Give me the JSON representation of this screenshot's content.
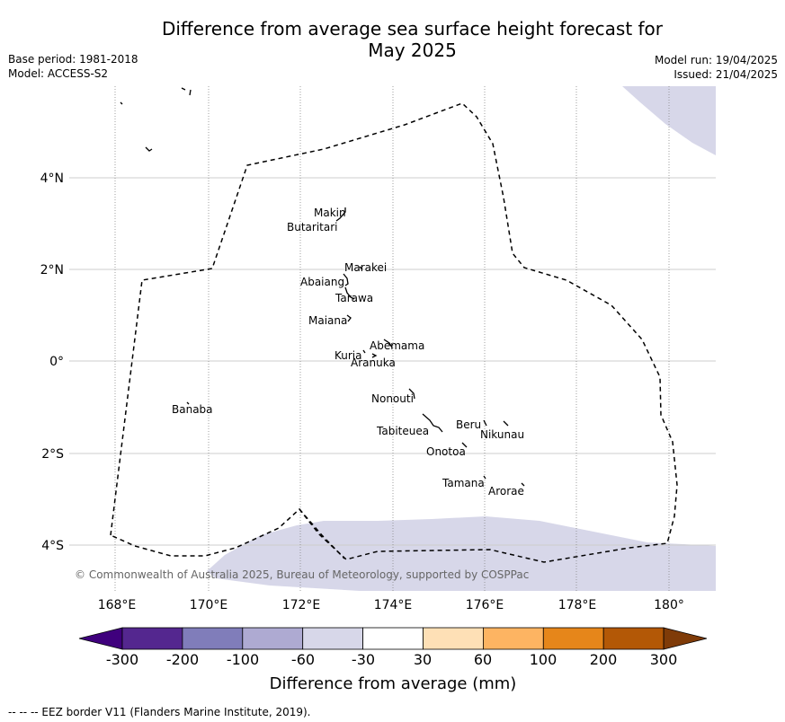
{
  "header": {
    "title_line1": "Difference from average sea surface height forecast for",
    "title_line2": "May 2025",
    "base_period": "Base period: 1981-2018",
    "model": "Model: ACCESS-S2",
    "model_run": "Model run: 19/04/2025",
    "issued": "Issued: 21/04/2025"
  },
  "map": {
    "lon_range": [
      167,
      181
    ],
    "lat_range": [
      -5.0,
      6.0
    ],
    "x_ticks": [
      {
        "lon": 168,
        "label": "168°E"
      },
      {
        "lon": 170,
        "label": "170°E"
      },
      {
        "lon": 172,
        "label": "172°E"
      },
      {
        "lon": 174,
        "label": "174°E"
      },
      {
        "lon": 176,
        "label": "176°E"
      },
      {
        "lon": 178,
        "label": "178°E"
      },
      {
        "lon": 180,
        "label": "180°"
      }
    ],
    "y_ticks": [
      {
        "lat": 4,
        "label": "4°N"
      },
      {
        "lat": 2,
        "label": "2°N"
      },
      {
        "lat": 0,
        "label": "0°"
      },
      {
        "lat": -2,
        "label": "2°S"
      },
      {
        "lat": -4,
        "label": "4°S"
      }
    ],
    "fill_category": "-60 to -30",
    "fill_color": "#d7d7e9",
    "islands": [
      {
        "name": "Makin",
        "lon": 173.0,
        "lat": 3.3
      },
      {
        "name": "Butaritari",
        "lon": 172.8,
        "lat": 3.1
      },
      {
        "name": "Marakei",
        "lon": 173.3,
        "lat": 2.0
      },
      {
        "name": "Abaiang",
        "lon": 172.9,
        "lat": 1.8
      },
      {
        "name": "Tarawa",
        "lon": 173.0,
        "lat": 1.4
      },
      {
        "name": "Maiana",
        "lon": 173.0,
        "lat": 0.9
      },
      {
        "name": "Abemama",
        "lon": 173.8,
        "lat": 0.4
      },
      {
        "name": "Kuria",
        "lon": 173.4,
        "lat": 0.2
      },
      {
        "name": "Aranuka",
        "lon": 173.6,
        "lat": 0.2
      },
      {
        "name": "Nonouti",
        "lon": 174.4,
        "lat": -0.6
      },
      {
        "name": "Banaba",
        "lon": 169.5,
        "lat": -0.9
      },
      {
        "name": "Tabiteuea",
        "lon": 174.8,
        "lat": -1.3
      },
      {
        "name": "Beru",
        "lon": 176.0,
        "lat": -1.3
      },
      {
        "name": "Nikunau",
        "lon": 176.4,
        "lat": -1.35
      },
      {
        "name": "Onotoa",
        "lon": 175.6,
        "lat": -1.8
      },
      {
        "name": "Tamana",
        "lon": 176.0,
        "lat": -2.5
      },
      {
        "name": "Arorae",
        "lon": 176.8,
        "lat": -2.6
      }
    ],
    "copyright": "© Commonwealth of Australia 2025, Bureau of Meteorology, supported by COSPPac"
  },
  "colorbar": {
    "label": "Difference from average (mm)",
    "colors": [
      "#3f007d",
      "#54278f",
      "#807dba",
      "#aeaad2",
      "#d7d7e9",
      "#ffffff",
      "#fee0b6",
      "#fdb462",
      "#e6861a",
      "#b35806",
      "#7f3b08"
    ],
    "tick_labels": [
      "-300",
      "-200",
      "-100",
      "-60",
      "-30",
      "30",
      "60",
      "100",
      "200",
      "300"
    ]
  },
  "footer": {
    "legend": "--  --  -- EEZ border V11 (Flanders Marine Institute, 2019)."
  }
}
